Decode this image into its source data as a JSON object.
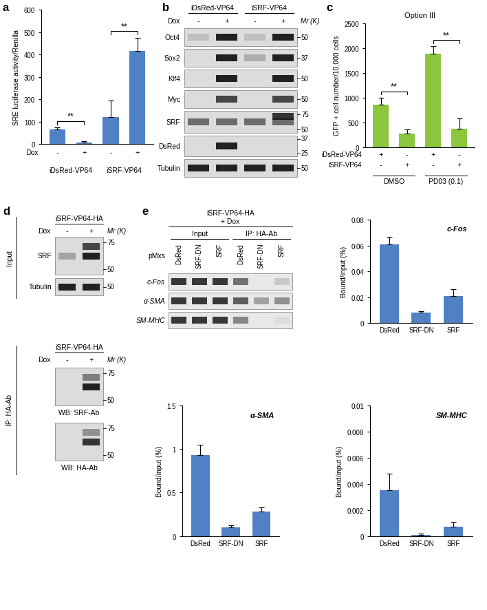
{
  "chart_data": [
    {
      "panel": "a",
      "type": "bar",
      "y_label": "SRE luciferase activity/Renilla",
      "rows": [
        {
          "label": "Dox",
          "values": [
            "-",
            "+",
            "-",
            "+"
          ]
        }
      ],
      "groups": [
        {
          "label": "iDsRed-VP64",
          "members": [
            0,
            1
          ]
        },
        {
          "label": "iSRF-VP64",
          "members": [
            2,
            3
          ]
        }
      ],
      "values": [
        65,
        8,
        120,
        415
      ],
      "errors": [
        8,
        4,
        75,
        60
      ],
      "significance": [
        {
          "bars": [
            0,
            1
          ],
          "label": "**"
        },
        {
          "bars": [
            2,
            3
          ],
          "label": "**"
        }
      ],
      "color": "#4f81c4",
      "ylim": [
        0,
        600
      ],
      "yticks": [
        0,
        100,
        200,
        300,
        400,
        500,
        600
      ]
    },
    {
      "panel": "c",
      "type": "bar",
      "title": "Option III",
      "y_label": "GFP + cell number/10,000 cells",
      "rows": [
        {
          "label": "iDsRed-VP64",
          "values": [
            "+",
            "-",
            "+",
            "-"
          ]
        },
        {
          "label": "iSRF-VP64",
          "values": [
            "-",
            "+",
            "-",
            "+"
          ]
        }
      ],
      "groups": [
        {
          "label": "DMSO",
          "members": [
            0,
            1
          ]
        },
        {
          "label": "PD03 (0.1)",
          "members": [
            2,
            3
          ]
        }
      ],
      "values": [
        860,
        270,
        1880,
        370
      ],
      "errors": [
        140,
        90,
        150,
        210
      ],
      "significance": [
        {
          "bars": [
            0,
            1
          ],
          "label": "**"
        },
        {
          "bars": [
            2,
            3
          ],
          "label": "**"
        }
      ],
      "color": "#8cc63f",
      "ylim": [
        0,
        2500
      ],
      "yticks": [
        0,
        500,
        1000,
        1500,
        2000,
        2500
      ]
    },
    {
      "type": "bar",
      "annotation": "c-Fos",
      "y_label": "Bound/input (%)",
      "categories": [
        "DsRed",
        "SRF-DN",
        "SRF"
      ],
      "values": [
        0.061,
        0.008,
        0.021
      ],
      "errors": [
        0.006,
        0.001,
        0.005
      ],
      "color": "#4f81c4",
      "ylim": [
        0,
        0.08
      ],
      "yticks": [
        0,
        0.02,
        0.04,
        0.06,
        0.08
      ]
    },
    {
      "type": "bar",
      "annotation": "α-SMA",
      "y_label": "Bound/input (%)",
      "categories": [
        "DsRed",
        "SRF-DN",
        "SRF"
      ],
      "values": [
        0.93,
        0.1,
        0.28
      ],
      "errors": [
        0.12,
        0.02,
        0.05
      ],
      "color": "#4f81c4",
      "ylim": [
        0,
        1.5
      ],
      "yticks": [
        0,
        0.5,
        1,
        1.5
      ]
    },
    {
      "type": "bar",
      "annotation": "SM-MHC",
      "y_label": "Bound/input (%)",
      "categories": [
        "DsRed",
        "SRF-DN",
        "SRF"
      ],
      "values": [
        0.0035,
        0.0001,
        0.0007
      ],
      "errors": [
        0.0013,
        0.0001,
        0.0004
      ],
      "color": "#4f81c4",
      "ylim": [
        0,
        0.01
      ],
      "yticks": [
        0,
        0.002,
        0.004,
        0.006,
        0.008,
        0.01
      ]
    }
  ],
  "blots": [
    {
      "panel": "b",
      "columns": [
        "iDsRed-VP64",
        "iSRF-VP64"
      ],
      "row_label": "Dox",
      "lanes": [
        "-",
        "+",
        "-",
        "+"
      ],
      "mr_label": "Mr (K)",
      "rows": [
        {
          "label": "Oct4",
          "markers": [
            50
          ]
        },
        {
          "label": "Sox2",
          "markers": [
            37
          ]
        },
        {
          "label": "Klf4",
          "markers": [
            50
          ]
        },
        {
          "label": "Myc",
          "markers": [
            50
          ]
        },
        {
          "label": "SRF",
          "markers": [
            75,
            50
          ]
        },
        {
          "label": "DsRed",
          "markers": [
            37,
            25
          ]
        },
        {
          "label": "Tubulin",
          "markers": [
            50
          ]
        }
      ]
    },
    {
      "panel": "d",
      "sections": [
        {
          "side_label": "Input",
          "header": "iSRF-VP64-HA",
          "row_label": "Dox",
          "lanes": [
            "-",
            "+"
          ],
          "mr_label": "Mr (K)",
          "rows": [
            {
              "label": "SRF",
              "markers": [
                75,
                50
              ]
            },
            {
              "label": "Tubulin",
              "markers": [
                50
              ]
            }
          ]
        },
        {
          "side_label": "IP: HA-Ab",
          "header": "iSRF-VP64-HA",
          "row_label": "Dox",
          "lanes": [
            "-",
            "+"
          ],
          "mr_label": "Mr (K)",
          "rows": [
            {
              "label": "WB: SRF-Ab",
              "markers": [
                75,
                50
              ]
            },
            {
              "label": "WB: HA-Ab",
              "markers": [
                75,
                50
              ]
            }
          ]
        }
      ]
    },
    {
      "panel": "e",
      "header": [
        "iSRF-VP64-HA",
        "+ Dox"
      ],
      "groups": [
        "Input",
        "IP: HA-Ab"
      ],
      "row_label": "pMxs",
      "lanes": [
        "DsRed",
        "SRF-DN",
        "SRF"
      ],
      "rows": [
        "c-Fos",
        "α-SMA",
        "SM-MHC"
      ]
    }
  ]
}
